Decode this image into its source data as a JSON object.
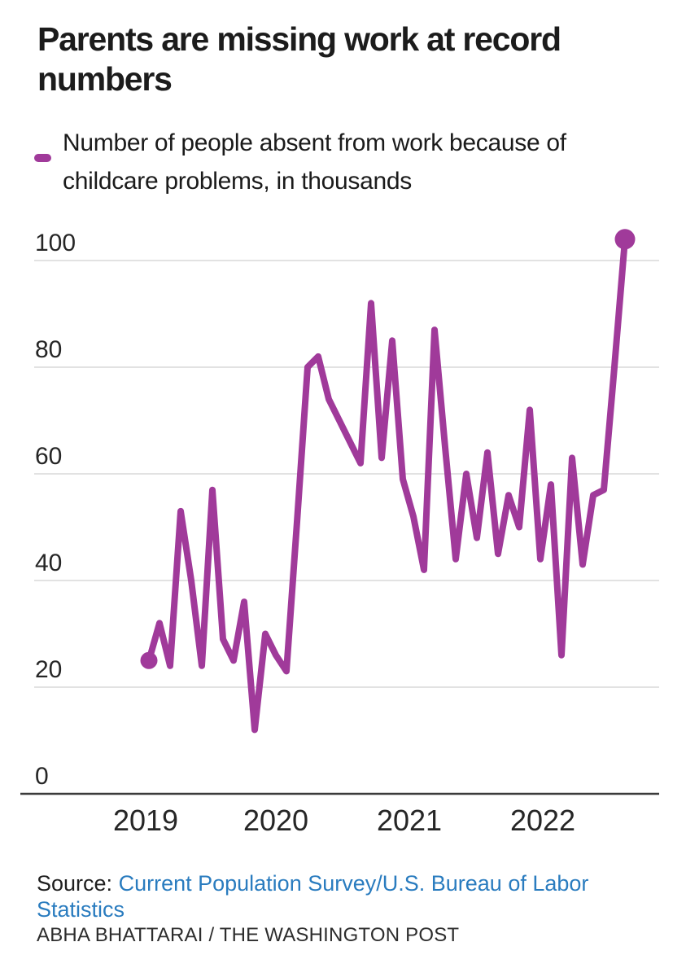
{
  "header": {
    "title": "Parents are missing work at record numbers"
  },
  "legend": {
    "label": "Number of people absent from work because of childcare problems, in thousands",
    "swatch_color": "#a03a9a"
  },
  "chart_data": {
    "type": "line",
    "title": "Parents are missing work at record numbers",
    "series_name": "Number of people absent from work because of childcare problems, in thousands",
    "unit": "thousands",
    "x": [
      "Jan 2019",
      "Feb 2019",
      "Mar 2019",
      "Apr 2019",
      "May 2019",
      "Jun 2019",
      "Jul 2019",
      "Aug 2019",
      "Sep 2019",
      "Oct 2019",
      "Nov 2019",
      "Dec 2019",
      "Jan 2020",
      "Feb 2020",
      "Mar 2020",
      "Apr 2020",
      "May 2020",
      "Jun 2020",
      "Jul 2020",
      "Aug 2020",
      "Sep 2020",
      "Oct 2020",
      "Nov 2020",
      "Dec 2020",
      "Jan 2021",
      "Feb 2021",
      "Mar 2021",
      "Apr 2021",
      "May 2021",
      "Jun 2021",
      "Jul 2021",
      "Aug 2021",
      "Sep 2021",
      "Oct 2021",
      "Nov 2021",
      "Dec 2021",
      "Jan 2022",
      "Feb 2022",
      "Mar 2022",
      "Apr 2022",
      "May 2022",
      "Jun 2022",
      "Jul 2022",
      "Aug 2022",
      "Sep 2022",
      "Oct 2022"
    ],
    "values": [
      25,
      32,
      24,
      53,
      40,
      24,
      57,
      29,
      25,
      36,
      12,
      30,
      26,
      23,
      51,
      80,
      82,
      74,
      70,
      66,
      62,
      92,
      63,
      85,
      59,
      52,
      42,
      87,
      65,
      44,
      60,
      48,
      64,
      45,
      56,
      50,
      72,
      44,
      58,
      26,
      63,
      43,
      56,
      57,
      80,
      104
    ],
    "y_ticks": [
      0,
      20,
      40,
      60,
      80,
      100
    ],
    "y_tick_labels": [
      "0",
      "20",
      "40",
      "60",
      "80",
      "100"
    ],
    "x_tick_labels": [
      "2019",
      "2020",
      "2021",
      "2022"
    ],
    "ylim": [
      0,
      107
    ],
    "xlabel": "",
    "ylabel": "",
    "grid": true,
    "legend_position": "top-left",
    "line_color": "#a03a9a",
    "gridline_color": "#d9d9d9",
    "zero_line_color": "#3b3b3b",
    "markers": "first and last point"
  },
  "footer": {
    "source_prefix": "Source:",
    "source_link": "Current Population Survey/U.S. Bureau of Labor Statistics",
    "link_color": "#2a7cbf",
    "byline": "ABHA BHATTARAI / THE WASHINGTON POST"
  }
}
